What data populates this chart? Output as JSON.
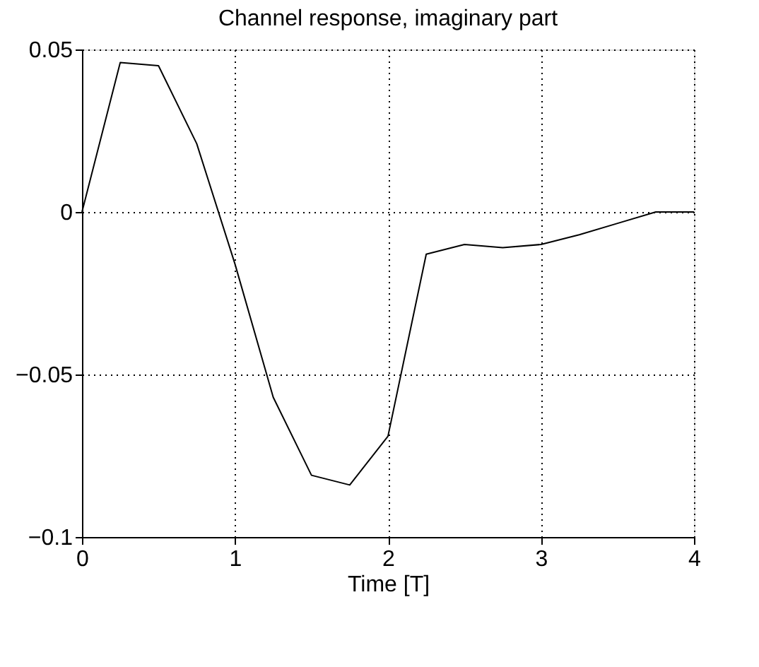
{
  "chart_data": {
    "type": "line",
    "title": "Channel response, imaginary part",
    "xlabel": "Time [T]",
    "x": [
      0,
      0.25,
      0.5,
      0.75,
      1,
      1.25,
      1.5,
      1.75,
      2,
      2.25,
      2.5,
      2.75,
      3,
      3.25,
      3.5,
      3.75,
      4
    ],
    "series": [
      {
        "color": "#000000",
        "values": [
          0,
          0.046,
          0.045,
          0.021,
          -0.016,
          -0.057,
          -0.081,
          -0.084,
          -0.069,
          -0.013,
          -0.01,
          -0.011,
          -0.01,
          -0.007,
          -0.0035,
          0,
          0
        ]
      }
    ],
    "xlim": [
      0,
      4
    ],
    "xticks": [
      0,
      1,
      2,
      3,
      4
    ],
    "ylim": [
      -0.1,
      0.05
    ],
    "yticks": [
      {
        "value": -0.1,
        "label": "−0.1"
      },
      {
        "value": -0.05,
        "label": "−0.05"
      },
      0,
      0.05
    ],
    "grid": true,
    "line_style": "solid",
    "marker": "none"
  }
}
